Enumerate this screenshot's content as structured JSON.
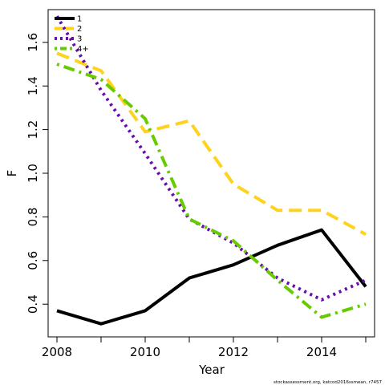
{
  "chart_data": {
    "type": "line",
    "title": "",
    "xlabel": "Year",
    "ylabel": "F",
    "x": [
      2008,
      2009,
      2010,
      2011,
      2012,
      2013,
      2014,
      2015
    ],
    "xlim": [
      2007.8,
      2015.2
    ],
    "ylim": [
      0.25,
      1.75
    ],
    "xticks": [
      "2008",
      "2010",
      "2012",
      "2014"
    ],
    "yticks": [
      "0.4",
      "0.6",
      "0.8",
      "1.0",
      "1.2",
      "1.4",
      "1.6"
    ],
    "grid": false,
    "legend_position": "top-left",
    "series": [
      {
        "name": "1",
        "color": "#000000",
        "dash": "solid",
        "values": [
          0.37,
          0.31,
          0.37,
          0.52,
          0.58,
          0.67,
          0.74,
          0.48
        ]
      },
      {
        "name": "2",
        "color": "#FFD21E",
        "dash": "dashed",
        "values": [
          1.55,
          1.47,
          1.19,
          1.24,
          0.95,
          0.83,
          0.83,
          0.72
        ]
      },
      {
        "name": "3",
        "color": "#6A0DAD",
        "dash": "dotted",
        "values": [
          1.72,
          1.38,
          1.09,
          0.79,
          0.68,
          0.52,
          0.42,
          0.51
        ]
      },
      {
        "name": "4+",
        "color": "#66CC00",
        "dash": "dotdash",
        "values": [
          1.5,
          1.43,
          1.25,
          0.79,
          0.69,
          0.51,
          0.34,
          0.4
        ]
      }
    ],
    "credit": "stockassessment.org, katcod2016ssmean, r7457"
  }
}
